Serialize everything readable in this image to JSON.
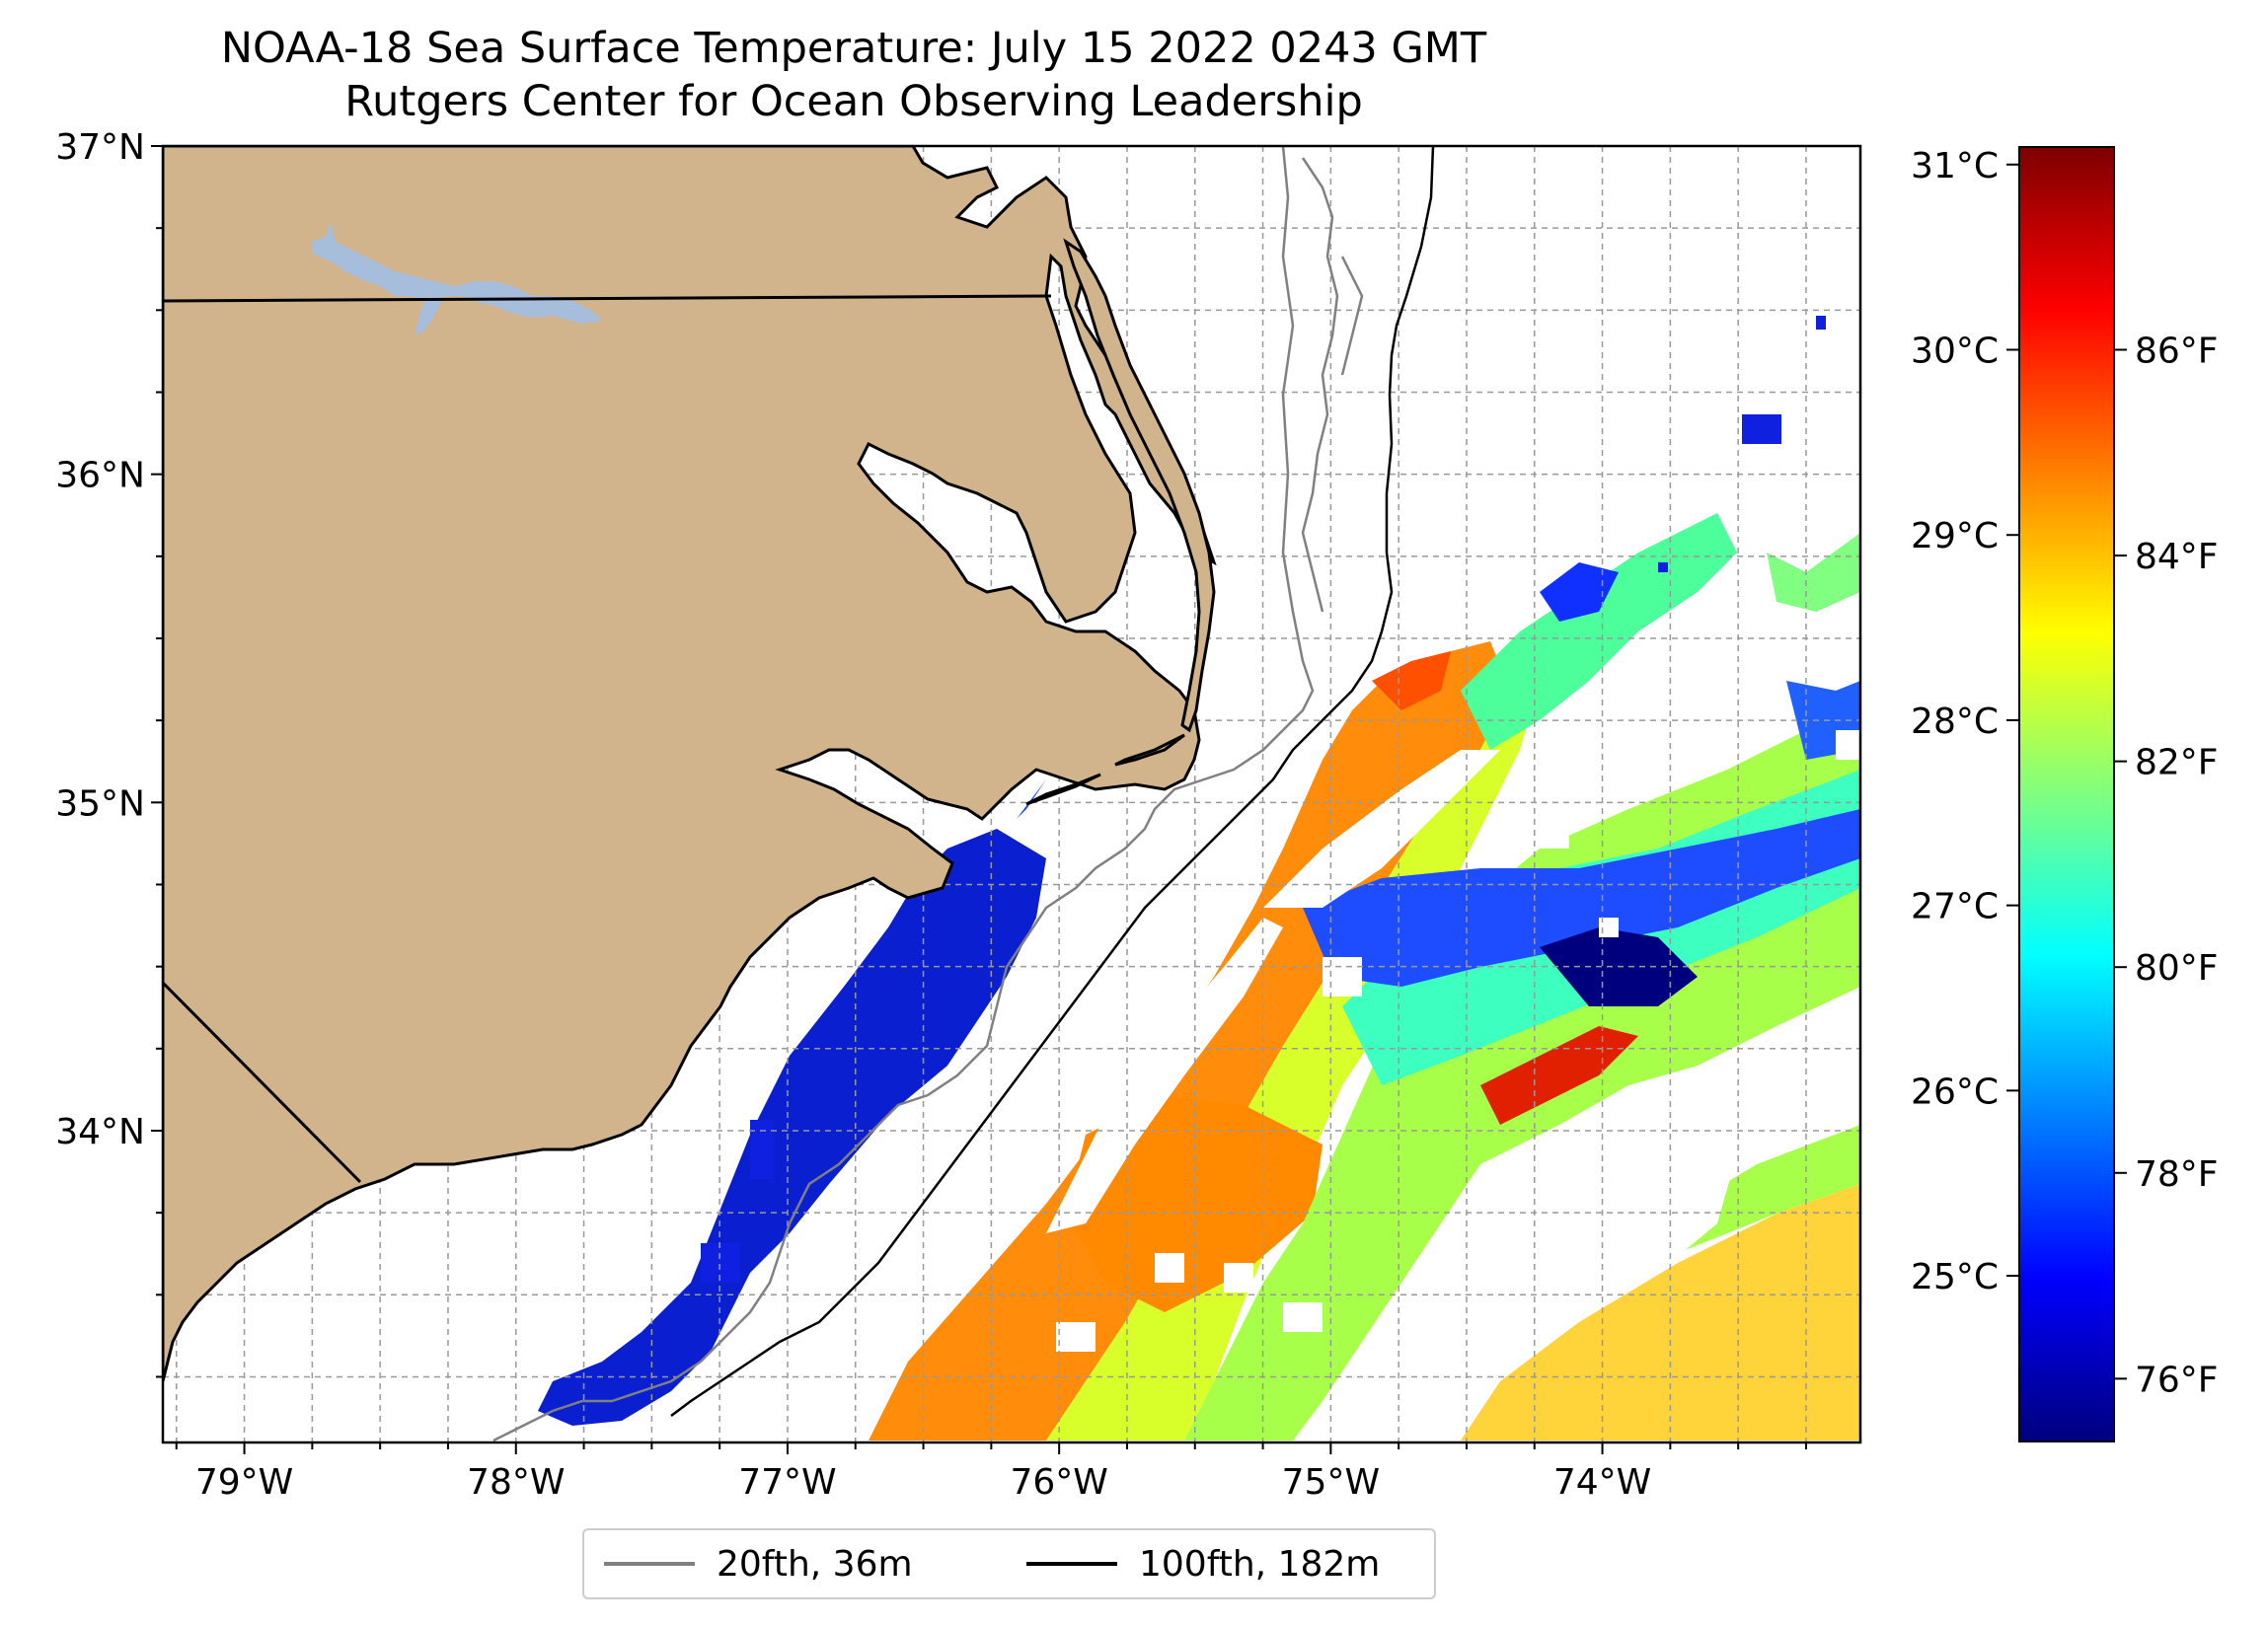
{
  "title": {
    "line1": "NOAA-18 Sea Surface Temperature: July 15 2022 0243 GMT",
    "line2": "Rutgers Center for Ocean Observing Leadership"
  },
  "map": {
    "extent": {
      "lon_min": -79.3,
      "lon_max": -73.05,
      "lat_min": 33.05,
      "lat_max": 37.0
    },
    "lon_ticks": [
      {
        "value": -79,
        "label": "79°W"
      },
      {
        "value": -78,
        "label": "78°W"
      },
      {
        "value": -77,
        "label": "77°W"
      },
      {
        "value": -76,
        "label": "76°W"
      },
      {
        "value": -75,
        "label": "75°W"
      },
      {
        "value": -74,
        "label": "74°W"
      }
    ],
    "lat_ticks": [
      {
        "value": 37,
        "label": "37°N"
      },
      {
        "value": 36,
        "label": "36°N"
      },
      {
        "value": 35,
        "label": "35°N"
      },
      {
        "value": 34,
        "label": "34°N"
      }
    ],
    "gridlines": true,
    "land_color": "#d2b48c",
    "lake_color": "#a6bddb",
    "isobath_colors": {
      "shelf": "#808080",
      "slope": "#000000"
    }
  },
  "legend": {
    "items": [
      {
        "label": "20fth, 36m",
        "color": "#808080"
      },
      {
        "label": "100fth, 182m",
        "color": "#000000"
      }
    ],
    "placement": "bottom-center"
  },
  "colorbar": {
    "colormap": "jet",
    "celsius_ticks": [
      {
        "value": 31,
        "label": "31°C"
      },
      {
        "value": 30,
        "label": "30°C"
      },
      {
        "value": 29,
        "label": "29°C"
      },
      {
        "value": 28,
        "label": "28°C"
      },
      {
        "value": 27,
        "label": "27°C"
      },
      {
        "value": 26,
        "label": "26°C"
      },
      {
        "value": 25,
        "label": "25°C"
      }
    ],
    "fahrenheit_ticks": [
      {
        "value": 86,
        "label": "86°F"
      },
      {
        "value": 84,
        "label": "84°F"
      },
      {
        "value": 82,
        "label": "82°F"
      },
      {
        "value": 80,
        "label": "80°F"
      },
      {
        "value": 78,
        "label": "78°F"
      },
      {
        "value": 76,
        "label": "76°F"
      }
    ],
    "range_c": [
      24.1,
      31.1
    ]
  }
}
